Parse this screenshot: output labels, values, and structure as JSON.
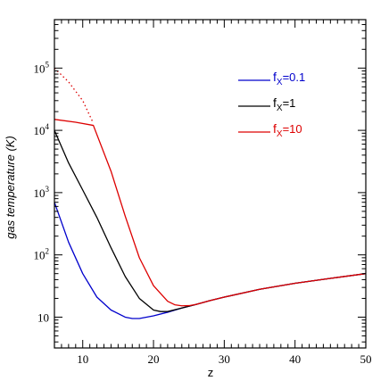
{
  "chart_data": {
    "type": "line",
    "xlabel": "z",
    "ylabel": "gas temperature (K)",
    "xlim": [
      6,
      50
    ],
    "ylim": [
      3.2,
      600000
    ],
    "yscale": "log",
    "x_ticks": [
      10,
      20,
      30,
      40,
      50
    ],
    "x_tick_labels": [
      "10",
      "20",
      "30",
      "40",
      "50"
    ],
    "y_ticks": [
      10,
      100,
      1000,
      10000,
      100000
    ],
    "y_tick_labels": [
      {
        "base": "10",
        "exp": ""
      },
      {
        "base": "10",
        "exp": "2"
      },
      {
        "base": "10",
        "exp": "3"
      },
      {
        "base": "10",
        "exp": "4"
      },
      {
        "base": "10",
        "exp": "5"
      }
    ],
    "legend_position": "top-right",
    "series": [
      {
        "name": "f_X=0.1",
        "legend": {
          "base": "f",
          "sub": "X",
          "rest": "=0.1"
        },
        "color": "#0000cc",
        "style": "solid",
        "points": [
          [
            6,
            700
          ],
          [
            8,
            160
          ],
          [
            10,
            50
          ],
          [
            12,
            21
          ],
          [
            14,
            13
          ],
          [
            16,
            10
          ],
          [
            17,
            9.5
          ],
          [
            18,
            9.5
          ],
          [
            20,
            10.5
          ],
          [
            22,
            12
          ],
          [
            24,
            14
          ],
          [
            26,
            16
          ],
          [
            28,
            18.5
          ],
          [
            30,
            21
          ],
          [
            35,
            28
          ],
          [
            40,
            35
          ],
          [
            45,
            42
          ],
          [
            50,
            50
          ]
        ]
      },
      {
        "name": "f_X=1",
        "legend": {
          "base": "f",
          "sub": "X",
          "rest": "=1"
        },
        "color": "#000000",
        "style": "solid",
        "points": [
          [
            6,
            10000
          ],
          [
            8,
            3000
          ],
          [
            10,
            1100
          ],
          [
            12,
            400
          ],
          [
            14,
            130
          ],
          [
            16,
            45
          ],
          [
            18,
            20
          ],
          [
            20,
            13
          ],
          [
            21,
            12.3
          ],
          [
            22,
            12.3
          ],
          [
            24,
            14
          ],
          [
            26,
            16
          ],
          [
            28,
            18.5
          ],
          [
            30,
            21
          ],
          [
            35,
            28
          ],
          [
            40,
            35
          ],
          [
            45,
            42
          ],
          [
            50,
            50
          ]
        ]
      },
      {
        "name": "f_X=10",
        "legend": {
          "base": "f",
          "sub": "X",
          "rest": "=10"
        },
        "color": "#dd0000",
        "style": "solid",
        "points": [
          [
            6,
            15000
          ],
          [
            9,
            13500
          ],
          [
            11.5,
            12000
          ],
          [
            14,
            2200
          ],
          [
            16,
            420
          ],
          [
            18,
            90
          ],
          [
            20,
            32
          ],
          [
            22,
            18
          ],
          [
            23,
            15.8
          ],
          [
            24,
            15.2
          ],
          [
            25,
            15.3
          ],
          [
            26,
            16
          ],
          [
            28,
            18.5
          ],
          [
            30,
            21
          ],
          [
            35,
            28
          ],
          [
            40,
            35
          ],
          [
            45,
            42
          ],
          [
            50,
            50
          ]
        ]
      },
      {
        "name": "f_X=10 (dotted)",
        "color": "#dd0000",
        "style": "dotted",
        "points": [
          [
            6,
            100000
          ],
          [
            8,
            60000
          ],
          [
            10,
            30000
          ],
          [
            11.5,
            13000
          ]
        ]
      }
    ]
  }
}
